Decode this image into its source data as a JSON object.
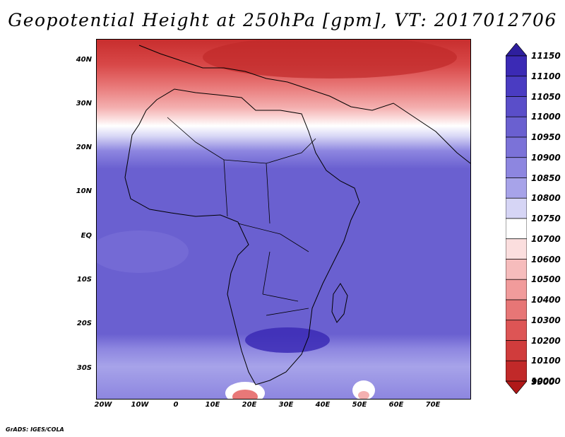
{
  "title": "Geopotential Height at 250hPa [gpm], VT: 2017012706",
  "credit": "GrADS: IGES/COLA",
  "y_labels": [
    "40N",
    "30N",
    "20N",
    "10N",
    "EQ",
    "10S",
    "20S",
    "30S"
  ],
  "x_labels": [
    "20W",
    "10W",
    "0",
    "10E",
    "20E",
    "30E",
    "40E",
    "50E",
    "60E",
    "70E"
  ],
  "colorbar": {
    "levels": [
      "11150",
      "11100",
      "11050",
      "11000",
      "10950",
      "10900",
      "10850",
      "10800",
      "10750",
      "10700",
      "10600",
      "10500",
      "10400",
      "10300",
      "10200",
      "10100",
      "10000",
      "9900"
    ],
    "colors": [
      "#2e1f9e",
      "#3b2ab5",
      "#4a3cc2",
      "#5a4ec9",
      "#6a60d0",
      "#7b72d8",
      "#8d86e0",
      "#a7a3e9",
      "#d6d5f5",
      "#ffffff",
      "#fbdede",
      "#f6bcbc",
      "#f19b9b",
      "#e77676",
      "#dd5555",
      "#d03c3c",
      "#c12929",
      "#b01818"
    ]
  },
  "map": {
    "lon_range": [
      -22,
      80
    ],
    "lat_range": [
      -37,
      45
    ],
    "field": "geopotential height 250hPa",
    "units": "gpm"
  }
}
